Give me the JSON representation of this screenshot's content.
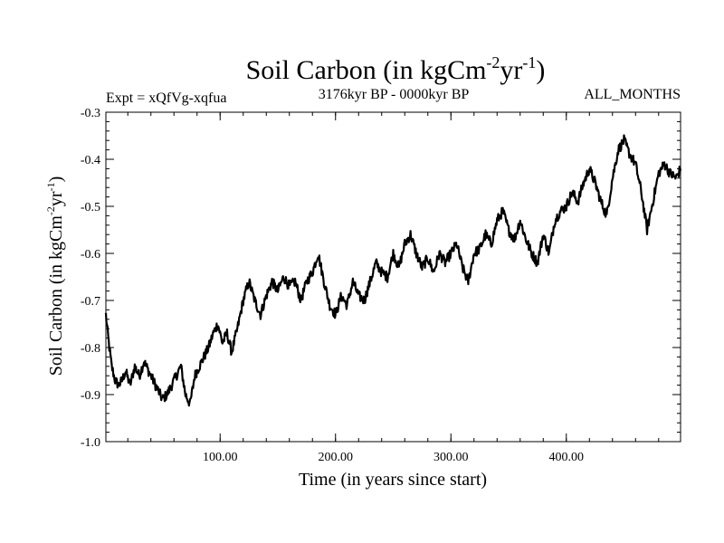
{
  "chart_data": {
    "type": "line",
    "title": {
      "main": "Soil Carbon (in kgCm",
      "sup1": "-2",
      "mid": "yr",
      "sup2": "-1",
      "end": ")"
    },
    "subtitle_left": "Expt = xQfVg-xqfua",
    "subtitle_center": "3176kyr BP - 0000kyr BP",
    "subtitle_right": "ALL_MONTHS",
    "xlabel": "Time (in years since start)",
    "ylabel": {
      "main": "Soil Carbon (in kgCm",
      "sup1": "-2",
      "mid": "yr",
      "sup2": "-1",
      "end": ")"
    },
    "xlim": [
      1,
      499
    ],
    "ylim": [
      -1.0,
      -0.3
    ],
    "x_ticks": [
      100,
      200,
      300,
      400
    ],
    "x_tick_labels": [
      "100.00",
      "200.00",
      "300.00",
      "400.00"
    ],
    "y_ticks": [
      -1.0,
      -0.9,
      -0.8,
      -0.7,
      -0.6,
      -0.5,
      -0.4,
      -0.3
    ],
    "y_tick_labels": [
      "-1.0",
      "-0.9",
      "-0.8",
      "-0.7",
      "-0.6",
      "-0.5",
      "-0.4",
      "-0.3"
    ],
    "line_color": "#000000",
    "series": [
      {
        "name": "Soil Carbon",
        "x": [
          1,
          3,
          6,
          9,
          12,
          15,
          18,
          22,
          26,
          30,
          34,
          38,
          42,
          46,
          50,
          54,
          58,
          62,
          66,
          70,
          74,
          78,
          82,
          86,
          90,
          94,
          98,
          102,
          106,
          110,
          115,
          120,
          125,
          130,
          135,
          140,
          145,
          150,
          155,
          160,
          165,
          170,
          175,
          180,
          185,
          190,
          195,
          200,
          205,
          210,
          215,
          220,
          225,
          230,
          235,
          240,
          245,
          250,
          255,
          260,
          265,
          270,
          275,
          280,
          285,
          290,
          295,
          300,
          305,
          310,
          315,
          320,
          325,
          330,
          335,
          340,
          345,
          350,
          355,
          360,
          365,
          370,
          375,
          380,
          385,
          390,
          395,
          400,
          405,
          410,
          415,
          420,
          425,
          430,
          435,
          440,
          445,
          450,
          455,
          460,
          465,
          470,
          475,
          480,
          485,
          490,
          495,
          499
        ],
        "values": [
          -0.73,
          -0.78,
          -0.84,
          -0.87,
          -0.88,
          -0.87,
          -0.85,
          -0.88,
          -0.84,
          -0.86,
          -0.83,
          -0.85,
          -0.87,
          -0.89,
          -0.91,
          -0.9,
          -0.88,
          -0.86,
          -0.84,
          -0.9,
          -0.92,
          -0.86,
          -0.84,
          -0.82,
          -0.8,
          -0.77,
          -0.75,
          -0.79,
          -0.77,
          -0.81,
          -0.76,
          -0.7,
          -0.66,
          -0.7,
          -0.73,
          -0.69,
          -0.66,
          -0.68,
          -0.65,
          -0.67,
          -0.66,
          -0.7,
          -0.66,
          -0.64,
          -0.6,
          -0.66,
          -0.71,
          -0.73,
          -0.69,
          -0.71,
          -0.66,
          -0.69,
          -0.7,
          -0.66,
          -0.62,
          -0.64,
          -0.65,
          -0.6,
          -0.63,
          -0.58,
          -0.56,
          -0.6,
          -0.63,
          -0.61,
          -0.64,
          -0.6,
          -0.62,
          -0.6,
          -0.58,
          -0.63,
          -0.66,
          -0.6,
          -0.59,
          -0.56,
          -0.58,
          -0.53,
          -0.51,
          -0.55,
          -0.57,
          -0.53,
          -0.57,
          -0.6,
          -0.62,
          -0.56,
          -0.6,
          -0.53,
          -0.51,
          -0.5,
          -0.47,
          -0.49,
          -0.45,
          -0.42,
          -0.45,
          -0.49,
          -0.52,
          -0.44,
          -0.38,
          -0.36,
          -0.39,
          -0.41,
          -0.47,
          -0.55,
          -0.49,
          -0.43,
          -0.41,
          -0.43,
          -0.44,
          -0.42
        ]
      }
    ]
  }
}
